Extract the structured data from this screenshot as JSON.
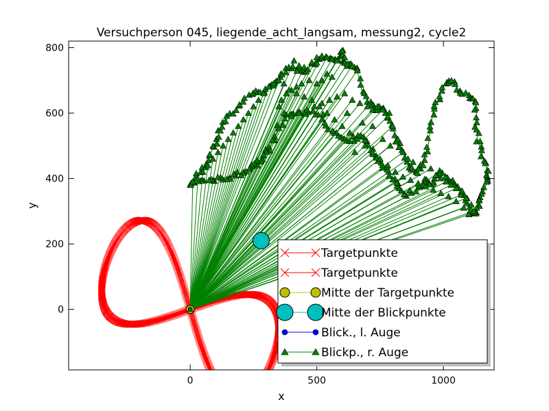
{
  "chart_data": {
    "type": "scatter",
    "title": "Versuchperson 045, liegende_acht_langsam, messung2, cycle2",
    "xlabel": "x",
    "ylabel": "y",
    "xlim": [
      -480,
      1200
    ],
    "ylim": [
      -185,
      820
    ],
    "xticks": [
      0,
      500,
      1000
    ],
    "yticks": [
      0,
      200,
      400,
      600,
      800
    ],
    "grid": false,
    "legend_position": "lower-right",
    "colors": {
      "target": "#ff0000",
      "target_center": "#bfbf00",
      "gaze_center": "#00bfbf",
      "left_eye": "#0000ff",
      "right_eye": "#008000"
    },
    "legend": [
      {
        "label": "Targetpunkte",
        "marker": "x",
        "color": "#ff0000"
      },
      {
        "label": "Targetpunkte",
        "marker": "x",
        "color": "#ff0000"
      },
      {
        "label": "Mitte der Targetpunkte",
        "marker": "circle",
        "color": "#bfbf00"
      },
      {
        "label": "Mitte der Blickpunkte",
        "marker": "big-circle",
        "color": "#00bfbf"
      },
      {
        "label": "Blick., l. Auge",
        "marker": "dot",
        "color": "#0000ff"
      },
      {
        "label": "Blickp., r. Auge",
        "marker": "triangle",
        "color": "#008000"
      }
    ],
    "target_center": {
      "x": 0,
      "y": 0
    },
    "gaze_center": {
      "x": 280,
      "y": 210
    },
    "left_eye_point": {
      "x": 0,
      "y": 0
    },
    "target_curve": {
      "shape": "figure-eight lissajous",
      "center": {
        "x": 0,
        "y": 0
      },
      "amplitude_x": 360,
      "amplitude_y": 165,
      "rotation_deg": 27,
      "samples": 900
    },
    "gaze_outline": [
      [
        0,
        380
      ],
      [
        30,
        410
      ],
      [
        60,
        440
      ],
      [
        75,
        470
      ],
      [
        95,
        500
      ],
      [
        110,
        530
      ],
      [
        125,
        560
      ],
      [
        150,
        585
      ],
      [
        180,
        610
      ],
      [
        210,
        640
      ],
      [
        240,
        660
      ],
      [
        270,
        665
      ],
      [
        300,
        670
      ],
      [
        320,
        685
      ],
      [
        345,
        700
      ],
      [
        370,
        720
      ],
      [
        390,
        735
      ],
      [
        420,
        740
      ],
      [
        445,
        720
      ],
      [
        470,
        740
      ],
      [
        500,
        760
      ],
      [
        540,
        775
      ],
      [
        570,
        770
      ],
      [
        590,
        760
      ],
      [
        600,
        790
      ],
      [
        610,
        765
      ],
      [
        620,
        745
      ],
      [
        640,
        745
      ],
      [
        660,
        730
      ],
      [
        680,
        660
      ],
      [
        700,
        640
      ],
      [
        720,
        620
      ],
      [
        740,
        610
      ],
      [
        760,
        620
      ],
      [
        780,
        600
      ],
      [
        800,
        560
      ],
      [
        810,
        520
      ],
      [
        830,
        500
      ],
      [
        850,
        470
      ],
      [
        860,
        440
      ],
      [
        880,
        430
      ],
      [
        900,
        420
      ],
      [
        920,
        450
      ],
      [
        940,
        500
      ],
      [
        950,
        560
      ],
      [
        960,
        610
      ],
      [
        980,
        640
      ],
      [
        1000,
        680
      ],
      [
        1020,
        700
      ],
      [
        1040,
        690
      ],
      [
        1060,
        670
      ],
      [
        1090,
        655
      ],
      [
        1110,
        650
      ],
      [
        1125,
        640
      ],
      [
        1130,
        610
      ],
      [
        1130,
        560
      ],
      [
        1135,
        520
      ],
      [
        1150,
        480
      ],
      [
        1165,
        450
      ],
      [
        1175,
        420
      ],
      [
        1180,
        400
      ],
      [
        1165,
        375
      ],
      [
        1150,
        345
      ],
      [
        1140,
        320
      ],
      [
        1130,
        300
      ],
      [
        1115,
        290
      ],
      [
        1100,
        310
      ],
      [
        1090,
        345
      ],
      [
        1070,
        365
      ],
      [
        1050,
        380
      ],
      [
        1030,
        390
      ],
      [
        1010,
        400
      ],
      [
        990,
        420
      ],
      [
        970,
        400
      ],
      [
        950,
        380
      ],
      [
        930,
        395
      ],
      [
        910,
        380
      ],
      [
        880,
        360
      ],
      [
        850,
        350
      ],
      [
        830,
        370
      ],
      [
        810,
        390
      ],
      [
        790,
        410
      ],
      [
        770,
        430
      ],
      [
        750,
        450
      ],
      [
        730,
        470
      ],
      [
        710,
        490
      ],
      [
        690,
        520
      ],
      [
        660,
        530
      ],
      [
        630,
        515
      ],
      [
        600,
        530
      ],
      [
        570,
        545
      ],
      [
        540,
        560
      ],
      [
        520,
        590
      ],
      [
        480,
        605
      ],
      [
        450,
        600
      ],
      [
        410,
        595
      ],
      [
        380,
        590
      ],
      [
        350,
        560
      ],
      [
        330,
        520
      ],
      [
        310,
        490
      ],
      [
        290,
        470
      ],
      [
        270,
        450
      ],
      [
        250,
        440
      ],
      [
        230,
        430
      ],
      [
        210,
        420
      ],
      [
        180,
        410
      ],
      [
        150,
        405
      ],
      [
        120,
        400
      ],
      [
        90,
        395
      ],
      [
        60,
        390
      ],
      [
        30,
        385
      ]
    ],
    "gaze_lines_from": {
      "x": 0,
      "y": 0
    },
    "gaze_lines_to": [
      [
        410,
        760
      ],
      [
        430,
        745
      ],
      [
        450,
        740
      ],
      [
        480,
        755
      ],
      [
        500,
        770
      ],
      [
        520,
        775
      ],
      [
        540,
        770
      ],
      [
        560,
        765
      ],
      [
        580,
        760
      ],
      [
        600,
        790
      ],
      [
        610,
        770
      ],
      [
        620,
        750
      ],
      [
        640,
        745
      ],
      [
        660,
        730
      ],
      [
        520,
        700
      ],
      [
        540,
        720
      ],
      [
        560,
        710
      ],
      [
        500,
        690
      ],
      [
        470,
        700
      ],
      [
        440,
        690
      ],
      [
        420,
        680
      ],
      [
        400,
        670
      ],
      [
        380,
        660
      ],
      [
        360,
        640
      ],
      [
        350,
        620
      ],
      [
        370,
        600
      ],
      [
        400,
        590
      ],
      [
        430,
        600
      ],
      [
        460,
        610
      ],
      [
        490,
        620
      ],
      [
        520,
        630
      ],
      [
        550,
        640
      ],
      [
        580,
        650
      ],
      [
        610,
        660
      ],
      [
        640,
        640
      ],
      [
        670,
        630
      ],
      [
        700,
        620
      ],
      [
        720,
        610
      ],
      [
        740,
        620
      ],
      [
        760,
        610
      ],
      [
        780,
        590
      ],
      [
        800,
        560
      ],
      [
        820,
        520
      ],
      [
        840,
        480
      ],
      [
        860,
        460
      ],
      [
        880,
        450
      ],
      [
        900,
        430
      ],
      [
        920,
        440
      ],
      [
        950,
        430
      ],
      [
        970,
        410
      ],
      [
        990,
        400
      ],
      [
        1010,
        390
      ],
      [
        1030,
        380
      ],
      [
        1050,
        370
      ],
      [
        1070,
        350
      ],
      [
        1090,
        340
      ],
      [
        1110,
        320
      ],
      [
        1120,
        300
      ],
      [
        1100,
        290
      ],
      [
        1080,
        310
      ],
      [
        1050,
        330
      ],
      [
        1020,
        345
      ],
      [
        990,
        355
      ],
      [
        960,
        365
      ],
      [
        930,
        375
      ],
      [
        900,
        385
      ],
      [
        870,
        395
      ],
      [
        840,
        405
      ],
      [
        810,
        420
      ],
      [
        780,
        440
      ],
      [
        750,
        460
      ],
      [
        720,
        480
      ],
      [
        690,
        500
      ],
      [
        660,
        520
      ],
      [
        630,
        540
      ],
      [
        600,
        560
      ],
      [
        570,
        580
      ],
      [
        540,
        600
      ],
      [
        510,
        620
      ],
      [
        480,
        640
      ],
      [
        450,
        650
      ],
      [
        420,
        660
      ],
      [
        390,
        670
      ],
      [
        370,
        690
      ],
      [
        350,
        700
      ],
      [
        330,
        690
      ],
      [
        310,
        680
      ],
      [
        290,
        660
      ],
      [
        270,
        640
      ],
      [
        250,
        620
      ],
      [
        230,
        600
      ],
      [
        210,
        580
      ],
      [
        190,
        560
      ],
      [
        170,
        540
      ],
      [
        150,
        520
      ],
      [
        130,
        500
      ],
      [
        110,
        480
      ],
      [
        90,
        460
      ],
      [
        70,
        440
      ],
      [
        50,
        420
      ],
      [
        30,
        400
      ],
      [
        10,
        390
      ],
      [
        620,
        600
      ],
      [
        680,
        570
      ],
      [
        720,
        560
      ],
      [
        760,
        520
      ],
      [
        790,
        500
      ],
      [
        650,
        480
      ]
    ]
  }
}
